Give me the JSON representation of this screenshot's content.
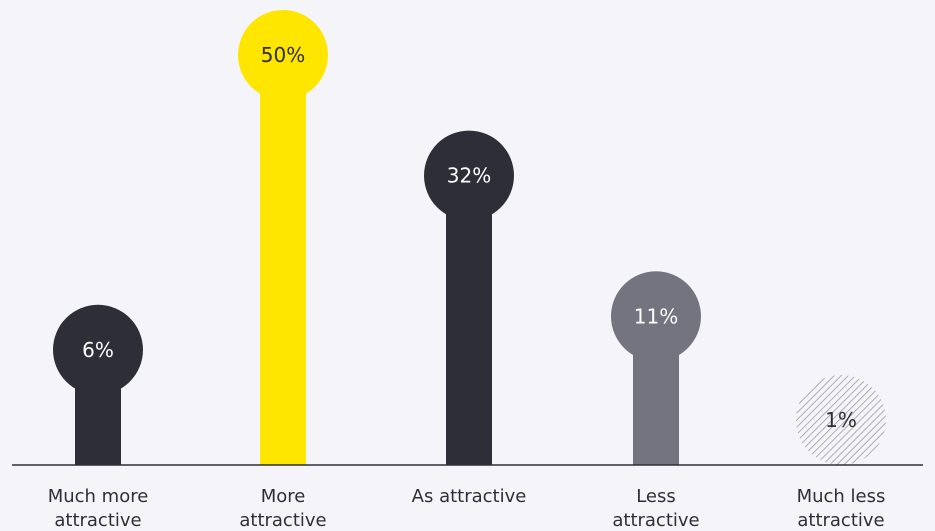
{
  "chart_data": {
    "type": "bar",
    "style": "lollipop",
    "categories": [
      [
        "Much more",
        "attractive"
      ],
      [
        "More",
        "attractive"
      ],
      [
        "As attractive"
      ],
      [
        "Less",
        "attractive"
      ],
      [
        "Much less",
        "attractive"
      ]
    ],
    "values": [
      6,
      50,
      32,
      11,
      1
    ],
    "value_labels": [
      "6%",
      "50%",
      "32%",
      "11%",
      "1%"
    ],
    "ylim": [
      0,
      50
    ],
    "grid": false,
    "colors": [
      "#2e2e38",
      "#ffe600",
      "#2e2e38",
      "#747480",
      "hatched"
    ],
    "label_colors": [
      "#ffffff",
      "#2e2e38",
      "#ffffff",
      "#ffffff",
      "#2e2e38"
    ],
    "baseline_color": "#2e2e38",
    "background": "#f5f5f9"
  }
}
